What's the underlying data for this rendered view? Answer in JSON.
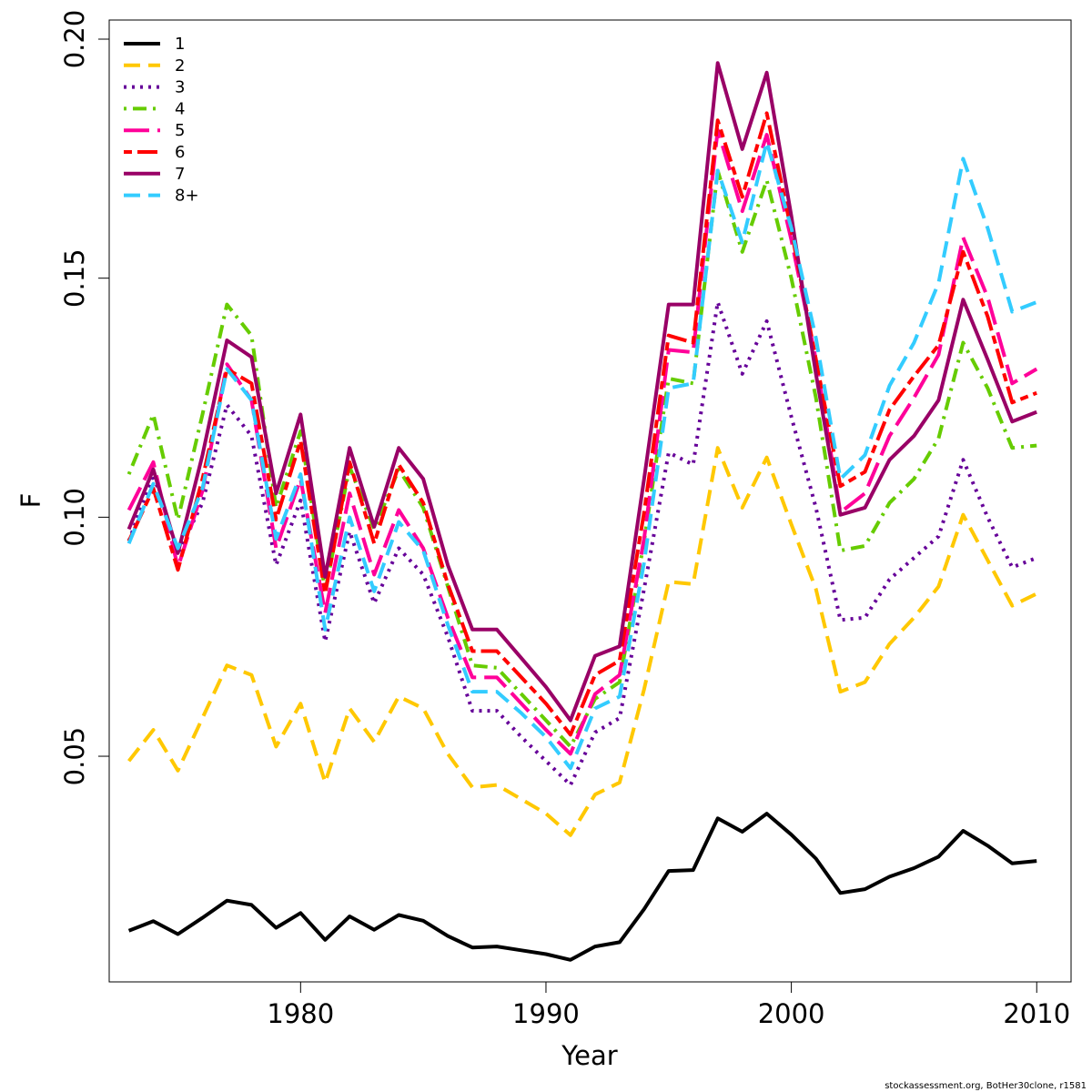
{
  "chart_data": {
    "type": "line",
    "xlabel": "Year",
    "ylabel": "F",
    "xlim": [
      1972.2,
      2011.4
    ],
    "ylim": [
      0.0028,
      0.204
    ],
    "xticks": [
      1980,
      1990,
      2000,
      2010
    ],
    "yticks": [
      0.05,
      0.1,
      0.15,
      0.2
    ],
    "ytick_labels": [
      "0.05",
      "0.10",
      "0.15",
      "0.20"
    ],
    "legend_position": "top-left",
    "footer": "stockassessment.org, BotHer30clone, r1581",
    "x": [
      1973,
      1974,
      1975,
      1976,
      1977,
      1978,
      1979,
      1980,
      1981,
      1982,
      1983,
      1984,
      1985,
      1986,
      1987,
      1988,
      1989,
      1990,
      1991,
      1992,
      1993,
      1994,
      1995,
      1996,
      1997,
      1998,
      1999,
      2000,
      2001,
      2002,
      2003,
      2004,
      2005,
      2006,
      2007,
      2008,
      2009,
      2010
    ],
    "series": [
      {
        "name": "1",
        "color": "#000000",
        "dash": "solid",
        "values": [
          0.0135,
          0.0155,
          0.0128,
          0.0162,
          0.0198,
          0.0189,
          0.0141,
          0.0172,
          0.0116,
          0.0165,
          0.0137,
          0.0168,
          0.0156,
          0.0124,
          0.01,
          0.0102,
          0.0094,
          0.0086,
          0.0074,
          0.0102,
          0.0111,
          0.018,
          0.026,
          0.0262,
          0.037,
          0.0342,
          0.038,
          0.0336,
          0.0286,
          0.0214,
          0.0222,
          0.0248,
          0.0266,
          0.029,
          0.0344,
          0.0313,
          0.0276,
          0.0281
        ]
      },
      {
        "name": "2",
        "color": "#ffc800",
        "dash": "dashed",
        "values": [
          0.049,
          0.0555,
          0.047,
          0.058,
          0.069,
          0.067,
          0.052,
          0.061,
          0.0445,
          0.06,
          0.053,
          0.0625,
          0.06,
          0.0505,
          0.0435,
          0.044,
          0.041,
          0.038,
          0.0335,
          0.042,
          0.0445,
          0.064,
          0.0865,
          0.086,
          0.1145,
          0.102,
          0.1125,
          0.0985,
          0.085,
          0.0635,
          0.0655,
          0.0735,
          0.079,
          0.0855,
          0.1005,
          0.091,
          0.0815,
          0.084
        ]
      },
      {
        "name": "3",
        "color": "#660099",
        "dash": "dotted",
        "values": [
          0.095,
          0.109,
          0.0925,
          0.103,
          0.1235,
          0.117,
          0.09,
          0.1035,
          0.074,
          0.097,
          0.082,
          0.0935,
          0.088,
          0.075,
          0.0595,
          0.0595,
          0.054,
          0.049,
          0.044,
          0.055,
          0.058,
          0.085,
          0.1135,
          0.111,
          0.145,
          0.13,
          0.141,
          0.121,
          0.102,
          0.0785,
          0.079,
          0.087,
          0.0915,
          0.096,
          0.112,
          0.1,
          0.0895,
          0.0915
        ]
      },
      {
        "name": "4",
        "color": "#66cc00",
        "dash": "dashdot",
        "values": [
          0.109,
          0.1215,
          0.0995,
          0.1215,
          0.1445,
          0.138,
          0.102,
          0.118,
          0.0845,
          0.1105,
          0.0975,
          0.11,
          0.102,
          0.0855,
          0.069,
          0.0685,
          0.063,
          0.0575,
          0.052,
          0.062,
          0.0655,
          0.095,
          0.129,
          0.128,
          0.1725,
          0.1555,
          0.1705,
          0.15,
          0.125,
          0.093,
          0.094,
          0.103,
          0.108,
          0.1165,
          0.1365,
          0.127,
          0.1145,
          0.115
        ]
      },
      {
        "name": "5",
        "color": "#ff0099",
        "dash": "longdash",
        "values": [
          0.1015,
          0.1115,
          0.0895,
          0.1055,
          0.132,
          0.1245,
          0.0935,
          0.108,
          0.08,
          0.105,
          0.088,
          0.1015,
          0.0935,
          0.079,
          0.0665,
          0.0665,
          0.061,
          0.0555,
          0.0505,
          0.063,
          0.067,
          0.0955,
          0.135,
          0.1345,
          0.181,
          0.164,
          0.18,
          0.158,
          0.133,
          0.101,
          0.105,
          0.117,
          0.125,
          0.134,
          0.1585,
          0.146,
          0.128,
          0.131
        ]
      },
      {
        "name": "6",
        "color": "#ff0000",
        "dash": "twodash",
        "values": [
          0.095,
          0.106,
          0.089,
          0.108,
          0.131,
          0.128,
          0.0995,
          0.116,
          0.084,
          0.1115,
          0.0945,
          0.111,
          0.103,
          0.086,
          0.072,
          0.072,
          0.0665,
          0.061,
          0.0545,
          0.067,
          0.07,
          0.101,
          0.138,
          0.1365,
          0.183,
          0.167,
          0.1845,
          0.16,
          0.133,
          0.1065,
          0.1095,
          0.1225,
          0.1295,
          0.136,
          0.1555,
          0.142,
          0.124,
          0.126
        ]
      },
      {
        "name": "7",
        "color": "#990066",
        "dash": "solid",
        "values": [
          0.0975,
          0.11,
          0.0925,
          0.113,
          0.137,
          0.1335,
          0.105,
          0.1215,
          0.0875,
          0.1145,
          0.098,
          0.1145,
          0.108,
          0.09,
          0.0765,
          0.0765,
          0.0705,
          0.0645,
          0.0575,
          0.071,
          0.073,
          0.108,
          0.1445,
          0.1445,
          0.195,
          0.177,
          0.193,
          0.163,
          0.13,
          0.1005,
          0.102,
          0.112,
          0.117,
          0.1245,
          0.1455,
          0.133,
          0.12,
          0.122
        ]
      },
      {
        "name": "8+",
        "color": "#33ccff",
        "dash": "dashed",
        "values": [
          0.0945,
          0.107,
          0.0935,
          0.106,
          0.131,
          0.1245,
          0.0955,
          0.109,
          0.0765,
          0.1,
          0.0845,
          0.099,
          0.093,
          0.0775,
          0.0635,
          0.0635,
          0.059,
          0.054,
          0.0475,
          0.06,
          0.0625,
          0.0905,
          0.127,
          0.128,
          0.1725,
          0.1575,
          0.1785,
          0.1605,
          0.1375,
          0.108,
          0.113,
          0.1275,
          0.1365,
          0.149,
          0.175,
          0.1605,
          0.143,
          0.145
        ]
      }
    ]
  }
}
